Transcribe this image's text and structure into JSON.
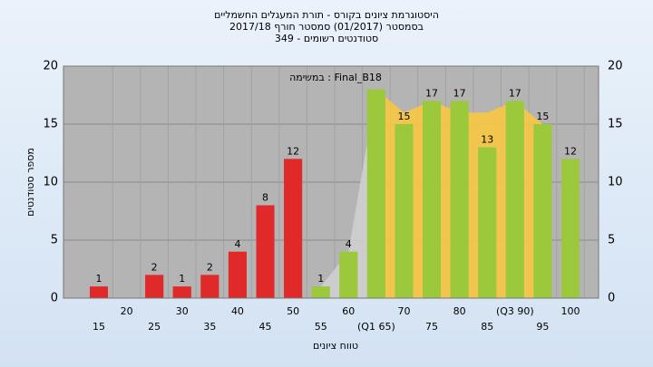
{
  "chart_data": {
    "type": "bar",
    "title": [
      "היסטוגרמת ציונים בקורס - תורת המעגלים החשמליים",
      "בסמסטר (01/2017) סמסטר חורף 2017/18",
      "סטודנטים רשומים - 349"
    ],
    "annotation": "במשימה : Final_B18",
    "x_label": "טווח ציונים",
    "y_label": "מספר סטודנטים",
    "categories": [
      "15",
      "20",
      "25",
      "30",
      "35",
      "40",
      "45",
      "50",
      "55",
      "60",
      "(Q1 65)",
      "70",
      "75",
      "80",
      "85",
      "(Q3 90)",
      "95",
      "100"
    ],
    "values": [
      1,
      0,
      2,
      1,
      2,
      4,
      8,
      12,
      1,
      4,
      18,
      15,
      17,
      17,
      13,
      17,
      15,
      12
    ],
    "value_labels": [
      "1",
      null,
      "2",
      "1",
      "2",
      "4",
      "8",
      "12",
      "1",
      "4",
      null,
      "15",
      "17",
      "17",
      "13",
      "17",
      "15",
      "12"
    ],
    "colors": [
      "#e02a2a",
      "#e02a2a",
      "#e02a2a",
      "#e02a2a",
      "#e02a2a",
      "#e02a2a",
      "#e02a2a",
      "#e02a2a",
      "#9cc83c",
      "#9cc83c",
      "#9cc83c",
      "#9cc83c",
      "#9cc83c",
      "#9cc83c",
      "#9cc83c",
      "#9cc83c",
      "#9cc83c",
      "#9cc83c"
    ],
    "areas": [
      {
        "color": "#cfcfcf",
        "values": [
          null,
          null,
          null,
          null,
          null,
          null,
          null,
          null,
          1,
          4,
          18,
          null,
          null,
          null,
          null,
          null,
          null,
          null
        ]
      },
      {
        "color": "#f7c643",
        "values": [
          null,
          null,
          null,
          null,
          null,
          null,
          null,
          null,
          null,
          null,
          18,
          16,
          17,
          16,
          16,
          17,
          15,
          null
        ]
      }
    ],
    "ylim": [
      0,
      20
    ],
    "yticks": [
      0,
      5,
      10,
      15,
      20
    ],
    "grid": true
  }
}
